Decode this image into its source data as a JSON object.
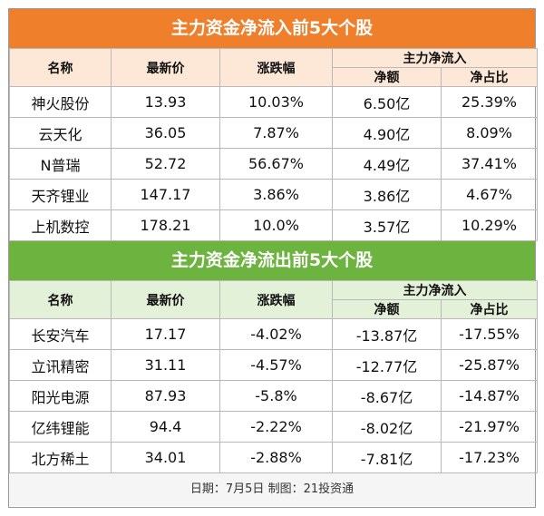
{
  "inflow": {
    "title": "主力资金净流入前5大个股",
    "headers": {
      "name": "名称",
      "price": "最新价",
      "change": "涨跌幅",
      "group": "主力净流入",
      "net": "净额",
      "ratio": "净占比"
    },
    "rows": [
      {
        "name": "神火股份",
        "price": "13.93",
        "change": "10.03%",
        "net": "6.50亿",
        "ratio": "25.39%"
      },
      {
        "name": "云天化",
        "price": "36.05",
        "change": "7.87%",
        "net": "4.90亿",
        "ratio": "8.09%"
      },
      {
        "name": "N普瑞",
        "price": "52.72",
        "change": "56.67%",
        "net": "4.49亿",
        "ratio": "37.41%"
      },
      {
        "name": "天齐锂业",
        "price": "147.17",
        "change": "3.86%",
        "net": "3.86亿",
        "ratio": "4.67%"
      },
      {
        "name": "上机数控",
        "price": "178.21",
        "change": "10.0%",
        "net": "3.57亿",
        "ratio": "10.29%"
      }
    ]
  },
  "outflow": {
    "title": "主力资金净流出前5大个股",
    "headers": {
      "name": "名称",
      "price": "最新价",
      "change": "涨跌幅",
      "group": "主力净流入",
      "net": "净额",
      "ratio": "净占比"
    },
    "rows": [
      {
        "name": "长安汽车",
        "price": "17.17",
        "change": "-4.02%",
        "net": "-13.87亿",
        "ratio": "-17.55%"
      },
      {
        "name": "立讯精密",
        "price": "31.11",
        "change": "-4.57%",
        "net": "-12.77亿",
        "ratio": "-25.87%"
      },
      {
        "name": "阳光电源",
        "price": "87.93",
        "change": "-5.8%",
        "net": "-8.67亿",
        "ratio": "-14.87%"
      },
      {
        "name": "亿纬锂能",
        "price": "94.4",
        "change": "-2.22%",
        "net": "-8.02亿",
        "ratio": "-21.97%"
      },
      {
        "name": "北方稀土",
        "price": "34.01",
        "change": "-2.88%",
        "net": "-7.81亿",
        "ratio": "-17.23%"
      }
    ]
  },
  "footer": "日期：7月5日 制图：21投资通",
  "colors": {
    "inflow_accent": "#ef7f2b",
    "outflow_accent": "#6db33f"
  }
}
